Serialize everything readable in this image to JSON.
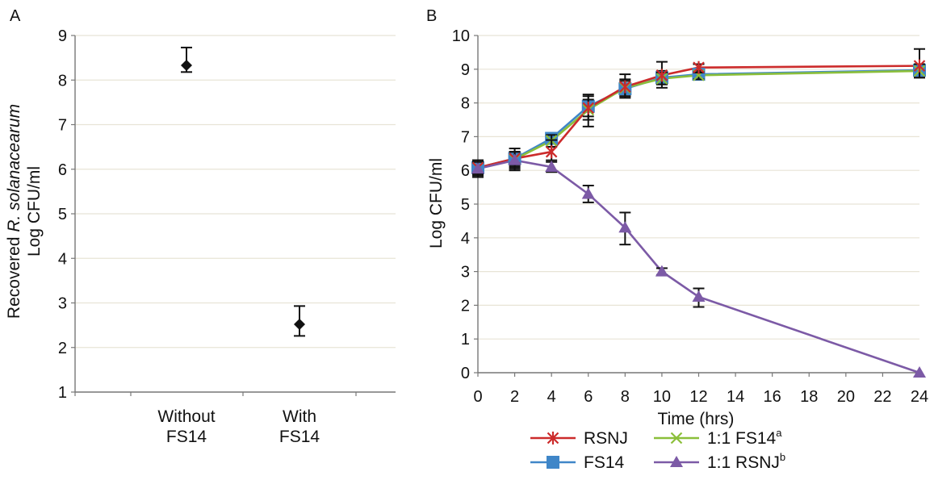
{
  "figure": {
    "panel_a_label": "A",
    "panel_b_label": "B"
  },
  "chart_data": [
    {
      "type": "scatter",
      "panel": "A",
      "categories": [
        "Without\nFS14",
        "With\nFS14"
      ],
      "category_lines": [
        [
          "Without",
          "FS14"
        ],
        [
          "With",
          "FS14"
        ]
      ],
      "values": [
        8.33,
        2.52
      ],
      "error_low": [
        8.18,
        2.26
      ],
      "error_high": [
        8.73,
        2.93
      ],
      "ylabel_line1_prefix": "Recovered ",
      "ylabel_line1_italic": "R. solanacearum",
      "ylabel_line2": "Log CFU/ml",
      "ylim": [
        1,
        9
      ],
      "yticks": [
        1,
        2,
        3,
        4,
        5,
        6,
        7,
        8,
        9
      ],
      "grid": true,
      "marker_color": "#111111"
    },
    {
      "type": "line",
      "panel": "B",
      "x": [
        0,
        2,
        4,
        6,
        8,
        10,
        12,
        24
      ],
      "xticks": [
        0,
        2,
        4,
        6,
        8,
        10,
        12,
        14,
        16,
        18,
        20,
        22,
        24
      ],
      "xlim": [
        0,
        24
      ],
      "ylim": [
        0,
        10
      ],
      "yticks": [
        0,
        1,
        2,
        3,
        4,
        5,
        6,
        7,
        8,
        9,
        10
      ],
      "xlabel": "Time (hrs)",
      "ylabel": "Log CFU/ml",
      "grid": true,
      "series": [
        {
          "name": "RSNJ",
          "sup": "",
          "color": "#cc2b2b",
          "marker": "star",
          "values": [
            6.08,
            6.35,
            6.55,
            7.85,
            8.48,
            8.82,
            9.05,
            9.1
          ],
          "error_low": [
            5.85,
            6.05,
            6.3,
            7.3,
            8.15,
            8.45,
            8.9,
            8.75
          ],
          "error_high": [
            6.3,
            6.65,
            6.9,
            8.25,
            8.85,
            9.22,
            9.15,
            9.6
          ]
        },
        {
          "name": "1:1 FS14",
          "sup": "a",
          "color": "#8bbf3a",
          "marker": "x",
          "values": [
            6.08,
            6.33,
            6.88,
            7.8,
            8.45,
            8.72,
            8.82,
            8.95
          ],
          "error_low": [
            5.9,
            6.1,
            6.7,
            7.5,
            8.2,
            8.55,
            8.7,
            8.75
          ],
          "error_high": [
            6.25,
            6.55,
            7.05,
            8.1,
            8.7,
            8.9,
            8.95,
            9.15
          ]
        },
        {
          "name": "FS14",
          "sup": "",
          "color": "#3f86c8",
          "marker": "square",
          "values": [
            6.08,
            6.35,
            6.95,
            7.9,
            8.42,
            8.75,
            8.85,
            8.97
          ],
          "error_low": [
            5.9,
            6.15,
            6.8,
            7.6,
            8.2,
            8.55,
            8.7,
            8.8
          ],
          "error_high": [
            6.25,
            6.55,
            7.1,
            8.2,
            8.65,
            8.95,
            9.0,
            9.15
          ]
        },
        {
          "name": "1:1 RSNJ",
          "sup": "b",
          "color": "#7c5aa6",
          "marker": "triangle",
          "values": [
            6.05,
            6.3,
            6.1,
            5.3,
            4.3,
            3.0,
            2.25,
            0.0
          ],
          "error_low": [
            5.8,
            6.0,
            5.95,
            5.05,
            3.8,
            2.9,
            1.95,
            0.0
          ],
          "error_high": [
            6.3,
            6.55,
            6.25,
            5.55,
            4.75,
            3.1,
            2.5,
            0.0
          ]
        }
      ],
      "legend_position": "bottom"
    }
  ]
}
